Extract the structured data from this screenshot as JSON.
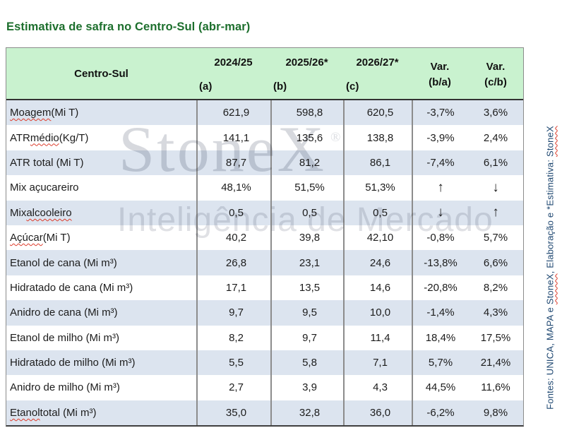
{
  "title": "Estimativa de safra no Centro-Sul (abr-mar)",
  "colors": {
    "title_green": "#1d6f2d",
    "header_bg": "#c9f2cf",
    "alt_row_bg": "#dce4ef",
    "column_border_gray": "#8c8c8c",
    "header_rule_dark": "#333333",
    "source_text_blue": "#1d4670",
    "spellcheck_red": "#dd3b2a",
    "watermark_gray": "#d7d9de"
  },
  "chart_data": {
    "type": "table",
    "title": "Estimativa de safra no Centro-Sul (abr-mar)",
    "columns": [
      [
        "Centro-Sul",
        ""
      ],
      [
        "2024/25",
        "(a)"
      ],
      [
        "2025/26*",
        "(b)"
      ],
      [
        "2026/27*",
        "(c)"
      ],
      [
        "Var.",
        "(b/a)"
      ],
      [
        "Var.",
        "(c/b)"
      ]
    ],
    "rows": [
      [
        "Moagem (Mi T)",
        "621,9",
        "598,8",
        "620,5",
        "-3,7%",
        "3,6%"
      ],
      [
        "ATR médio (Kg/T)",
        "141,1",
        "135,6",
        "138,8",
        "-3,9%",
        "2,4%"
      ],
      [
        "ATR total (Mi T)",
        "87,7",
        "81,2",
        "86,1",
        "-7,4%",
        "6,1%"
      ],
      [
        "Mix açucareiro",
        "48,1%",
        "51,5%",
        "51,3%",
        "↑",
        "↓"
      ],
      [
        "Mix alcooleiro",
        "0,5",
        "0,5",
        "0,5",
        "↓",
        "↑"
      ],
      [
        "Açúcar (Mi T)",
        "40,2",
        "39,8",
        "42,10",
        "-0,8%",
        "5,7%"
      ],
      [
        "Etanol de cana (Mi m³)",
        "26,8",
        "23,1",
        "24,6",
        "-13,8%",
        "6,6%"
      ],
      [
        "Hidratado de cana (Mi m³)",
        "17,1",
        "13,5",
        "14,6",
        "-20,8%",
        "8,2%"
      ],
      [
        "Anidro de cana (Mi m³)",
        "9,7",
        "9,5",
        "10,0",
        "-1,4%",
        "4,3%"
      ],
      [
        "Etanol de milho (Mi m³)",
        "8,2",
        "9,7",
        "11,4",
        "18,4%",
        "17,5%"
      ],
      [
        "Hidratado de milho (Mi m³)",
        "5,5",
        "5,8",
        "7,1",
        "5,7%",
        "21,4%"
      ],
      [
        "Anidro de milho (Mi m³)",
        "2,7",
        "3,9",
        "4,3",
        "44,5%",
        "11,6%"
      ],
      [
        "Etanol total (Mi m³)",
        "35,0",
        "32,8",
        "36,0",
        "-6,2%",
        "9,8%"
      ]
    ]
  },
  "spellcheck_marks_by_row": {
    "0": "Moagem",
    "1": "médio",
    "4": "alcooleiro",
    "5": "Açúcar",
    "12": "Etanol"
  },
  "watermark": {
    "brand": "StoneX",
    "registered": "®",
    "tagline": "Inteligência de Mercado"
  },
  "source_note": {
    "parts": [
      {
        "text": "Fontes: UNICA, MAPA e "
      },
      {
        "text": "StoneX",
        "misspelled": true
      },
      {
        "text": ", Elaboração e *Estimativa: "
      },
      {
        "text": "StoneX",
        "misspelled": true
      }
    ]
  }
}
